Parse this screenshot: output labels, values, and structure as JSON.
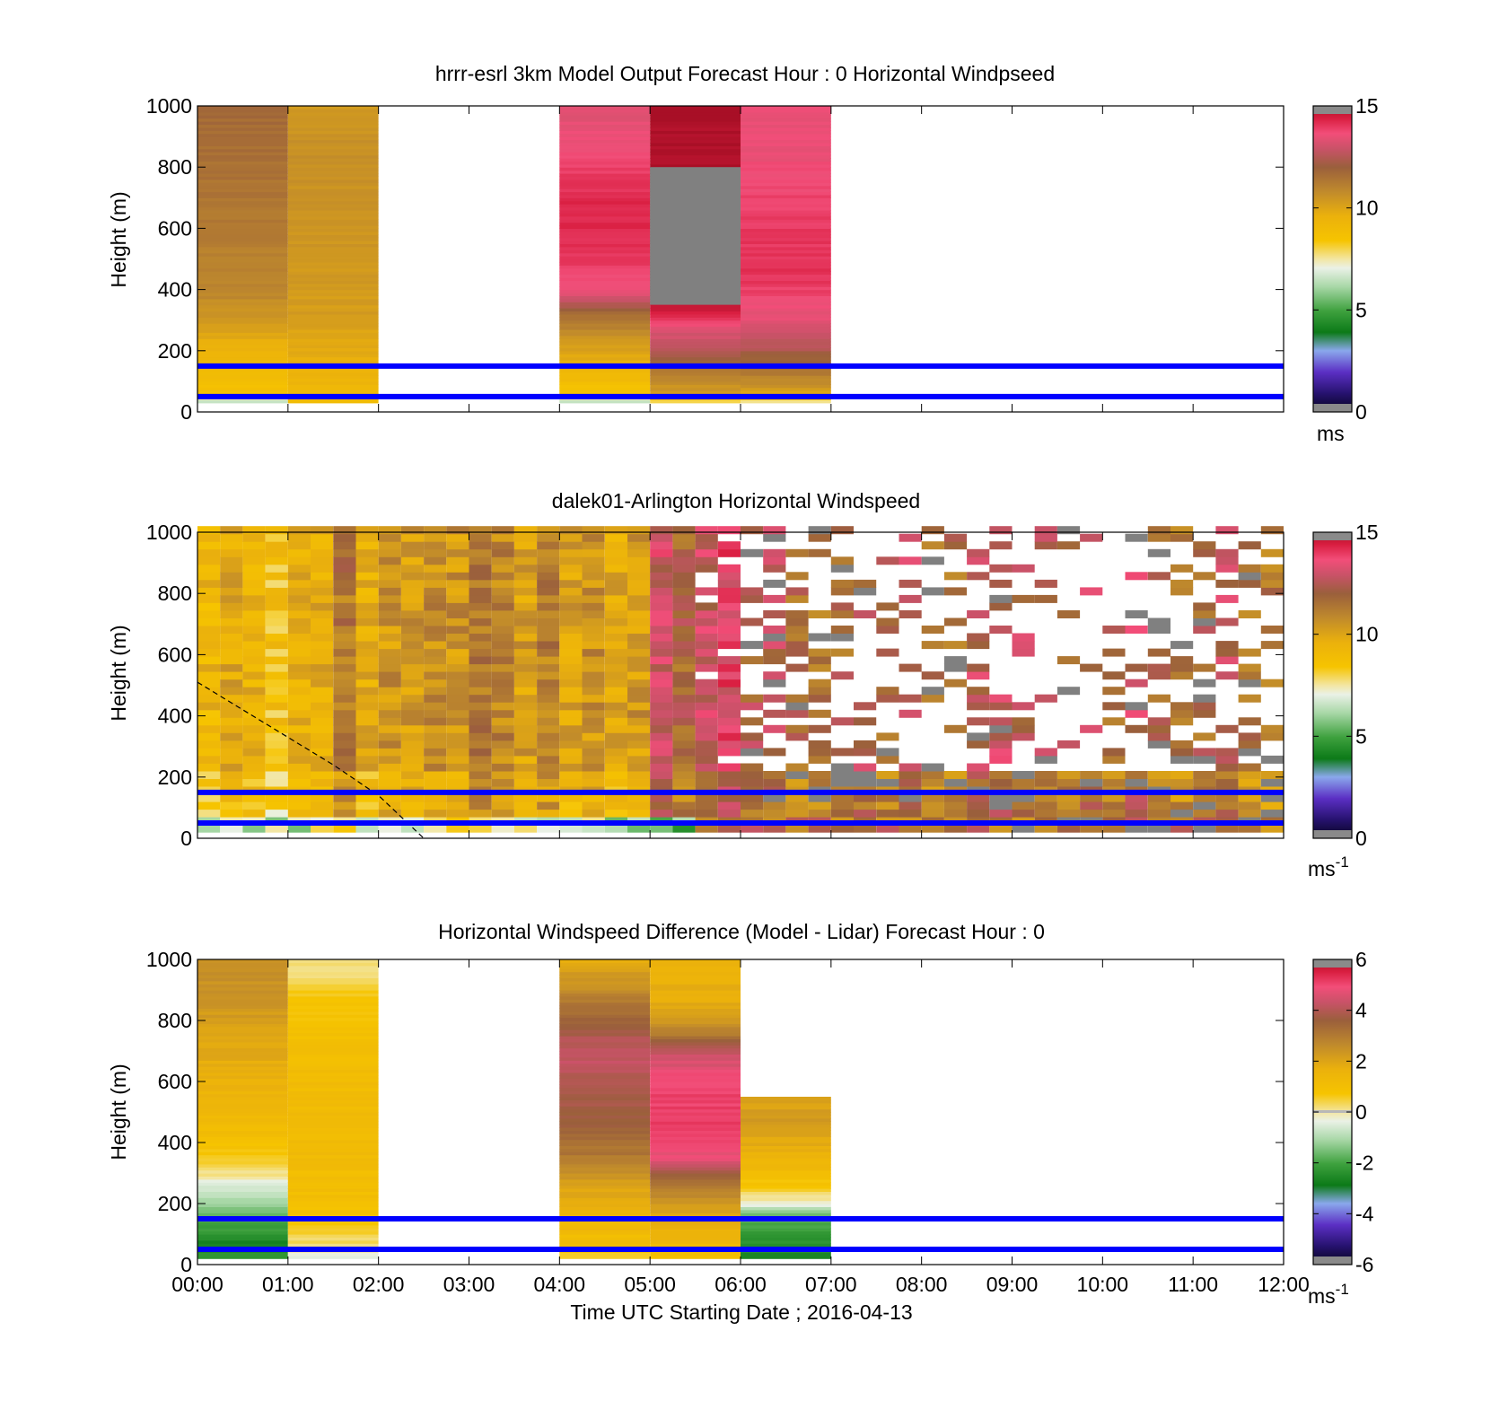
{
  "chart_data": [
    {
      "type": "heatmap",
      "title": "hrrr-esrl 3km Model Output   Forecast Hour : 0 Horizontal Windpseed",
      "xlabel": "",
      "ylabel": "Height (m)",
      "xlim": [
        "00:00",
        "12:00"
      ],
      "ylim": [
        0,
        1000
      ],
      "yticks": [
        "0",
        "200",
        "400",
        "600",
        "800",
        "1000"
      ],
      "grid": false,
      "colorbar": {
        "range": [
          0,
          15
        ],
        "ticks": [
          "0",
          "5",
          "10",
          "15"
        ],
        "unit": "ms",
        "unit_sup": ""
      },
      "reference_lines_m": [
        150,
        50
      ],
      "columns": [
        {
          "start": "00:00",
          "end": "01:00",
          "bottom": 30,
          "top": 1000,
          "profile": [
            [
              30,
              6
            ],
            [
              60,
              8.5
            ],
            [
              100,
              8.8
            ],
            [
              150,
              9.2
            ],
            [
              220,
              9.6
            ],
            [
              300,
              10.4
            ],
            [
              400,
              10.9
            ],
            [
              600,
              11.2
            ],
            [
              800,
              11.5
            ],
            [
              1000,
              11.7
            ]
          ]
        },
        {
          "start": "01:00",
          "end": "02:00",
          "bottom": 30,
          "top": 1000,
          "profile": [
            [
              30,
              9.0
            ],
            [
              60,
              9.2
            ],
            [
              150,
              9.6
            ],
            [
              300,
              10.2
            ],
            [
              600,
              10.5
            ],
            [
              900,
              10.6
            ],
            [
              1000,
              10.3
            ]
          ]
        },
        {
          "start": "04:00",
          "end": "05:00",
          "bottom": 30,
          "top": 1000,
          "profile": [
            [
              30,
              6.2
            ],
            [
              60,
              8.4
            ],
            [
              150,
              9.5
            ],
            [
              250,
              10.6
            ],
            [
              330,
              11.8
            ],
            [
              380,
              13.3
            ],
            [
              500,
              14.0
            ],
            [
              650,
              14.3
            ],
            [
              800,
              13.9
            ],
            [
              950,
              13.4
            ],
            [
              1000,
              13.2
            ]
          ]
        },
        {
          "start": "05:00",
          "end": "06:00",
          "bottom": 30,
          "top": 1000,
          "profile": [
            [
              30,
              7.5
            ],
            [
              60,
              10.2
            ],
            [
              150,
              11.5
            ],
            [
              200,
              12.6
            ],
            [
              260,
              13.2
            ],
            [
              330,
              14.4
            ],
            [
              380,
              14.8
            ],
            [
              1000,
              15.0
            ]
          ],
          "missing_range": [
            350,
            800
          ]
        },
        {
          "start": "06:00",
          "end": "07:00",
          "bottom": 30,
          "top": 1000,
          "profile": [
            [
              30,
              7.0
            ],
            [
              60,
              10.0
            ],
            [
              150,
              11.6
            ],
            [
              220,
              12.6
            ],
            [
              300,
              13.4
            ],
            [
              450,
              14.1
            ],
            [
              650,
              13.9
            ],
            [
              800,
              13.6
            ],
            [
              1000,
              13.4
            ]
          ]
        }
      ]
    },
    {
      "type": "heatmap",
      "title": "dalek01-Arlington  Horizontal Windspeed",
      "xlabel": "",
      "ylabel": "Height (m)",
      "xlim": [
        "00:00",
        "12:00"
      ],
      "ylim": [
        0,
        1000
      ],
      "yticks": [
        "0",
        "200",
        "400",
        "600",
        "800",
        "1000"
      ],
      "grid": false,
      "colorbar": {
        "range": [
          0,
          15
        ],
        "ticks": [
          "0",
          "5",
          "10",
          "15"
        ],
        "unit": "ms",
        "unit_sup": "-1"
      },
      "reference_lines_m": [
        150,
        50
      ],
      "dashed_line": [
        [
          "00:00",
          510
        ],
        [
          "00:30",
          420
        ],
        [
          "01:00",
          330
        ],
        [
          "01:30",
          240
        ],
        [
          "02:00",
          140
        ],
        [
          "02:30",
          0
        ]
      ],
      "sample_interval_min": 15,
      "range_gate_m": 25,
      "regimes": [
        {
          "start": "00:00",
          "end": "01:30",
          "base": 9.4,
          "low_level": 6.8,
          "top": 1000,
          "dropout": 0.0
        },
        {
          "start": "01:30",
          "end": "03:00",
          "base": 10.6,
          "low_level": 7.2,
          "top": 1000,
          "dropout": 0.0
        },
        {
          "start": "03:00",
          "end": "04:00",
          "base": 10.9,
          "low_level": 7.0,
          "top": 1000,
          "dropout": 0.0
        },
        {
          "start": "04:00",
          "end": "05:00",
          "base": 10.2,
          "low_level": 6.5,
          "top": 1000,
          "dropout": 0.0
        },
        {
          "start": "05:00",
          "end": "05:30",
          "base": 12.5,
          "low_level": 5.6,
          "top": 1000,
          "dropout": 0.0
        },
        {
          "start": "05:30",
          "end": "06:00",
          "base": 12.9,
          "low_level": 11.5,
          "top": 1000,
          "dropout": 0.1
        },
        {
          "start": "06:00",
          "end": "07:00",
          "base": 12.4,
          "low_level": 11.8,
          "top": 1000,
          "dropout": 0.45
        },
        {
          "start": "07:00",
          "end": "09:00",
          "base": 12.2,
          "low_level": 11.5,
          "top": 1000,
          "dropout": 0.62
        },
        {
          "start": "09:00",
          "end": "10:30",
          "base": 12.2,
          "low_level": 11.5,
          "top": 1000,
          "dropout": 0.78
        },
        {
          "start": "10:30",
          "end": "12:00",
          "base": 11.8,
          "low_level": 11.3,
          "top": 1000,
          "dropout": 0.55
        }
      ]
    },
    {
      "type": "heatmap",
      "title": "Horizontal Windspeed Difference (Model - Lidar) Forecast Hour : 0",
      "xlabel": "Time UTC  Starting Date ; 2016-04-13",
      "ylabel": "Height (m)",
      "xlim": [
        "00:00",
        "12:00"
      ],
      "ylim": [
        0,
        1000
      ],
      "xticks": [
        "00:00",
        "01:00",
        "02:00",
        "03:00",
        "04:00",
        "05:00",
        "06:00",
        "07:00",
        "08:00",
        "09:00",
        "10:00",
        "11:00",
        "12:00"
      ],
      "yticks": [
        "0",
        "200",
        "400",
        "600",
        "800",
        "1000"
      ],
      "grid": false,
      "colorbar": {
        "range": [
          -6,
          6
        ],
        "ticks": [
          "-6",
          "-4",
          "-2",
          "0",
          "2",
          "4",
          "6"
        ],
        "unit": "ms",
        "unit_sup": "-1"
      },
      "reference_lines_m": [
        150,
        50
      ],
      "columns": [
        {
          "start": "00:00",
          "end": "01:00",
          "bottom": 20,
          "top": 1000,
          "profile": [
            [
              20,
              -2.2
            ],
            [
              80,
              -2.6
            ],
            [
              150,
              -1.8
            ],
            [
              220,
              -1.0
            ],
            [
              260,
              -0.4
            ],
            [
              330,
              0.4
            ],
            [
              420,
              1.0
            ],
            [
              550,
              1.5
            ],
            [
              700,
              1.9
            ],
            [
              850,
              2.3
            ],
            [
              1000,
              2.6
            ]
          ]
        },
        {
          "start": "01:00",
          "end": "02:00",
          "bottom": 20,
          "top": 1000,
          "profile": [
            [
              20,
              -0.6
            ],
            [
              60,
              0.1
            ],
            [
              120,
              0.6
            ],
            [
              200,
              1.0
            ],
            [
              400,
              1.2
            ],
            [
              700,
              1.1
            ],
            [
              900,
              0.6
            ],
            [
              960,
              0.2
            ],
            [
              1000,
              0.1
            ]
          ]
        },
        {
          "start": "04:00",
          "end": "05:00",
          "bottom": 20,
          "top": 1000,
          "profile": [
            [
              20,
              0.3
            ],
            [
              60,
              1.0
            ],
            [
              150,
              1.4
            ],
            [
              250,
              2.0
            ],
            [
              350,
              3.0
            ],
            [
              450,
              3.5
            ],
            [
              600,
              4.0
            ],
            [
              700,
              4.3
            ],
            [
              800,
              3.5
            ],
            [
              900,
              2.6
            ],
            [
              1000,
              1.8
            ]
          ]
        },
        {
          "start": "05:00",
          "end": "06:00",
          "bottom": 20,
          "top": 1000,
          "profile": [
            [
              20,
              1.0
            ],
            [
              100,
              1.5
            ],
            [
              200,
              2.2
            ],
            [
              280,
              3.3
            ],
            [
              350,
              4.8
            ],
            [
              450,
              5.2
            ],
            [
              600,
              5.0
            ],
            [
              700,
              4.3
            ],
            [
              760,
              2.8
            ],
            [
              850,
              1.8
            ],
            [
              1000,
              1.5
            ]
          ]
        },
        {
          "start": "06:00",
          "end": "07:00",
          "bottom": 20,
          "top": 550,
          "profile": [
            [
              20,
              -2.6
            ],
            [
              100,
              -2.3
            ],
            [
              170,
              -1.4
            ],
            [
              210,
              0.0
            ],
            [
              260,
              0.7
            ],
            [
              320,
              1.3
            ],
            [
              400,
              1.9
            ],
            [
              470,
              2.2
            ],
            [
              550,
              2.0
            ]
          ]
        }
      ]
    }
  ]
}
